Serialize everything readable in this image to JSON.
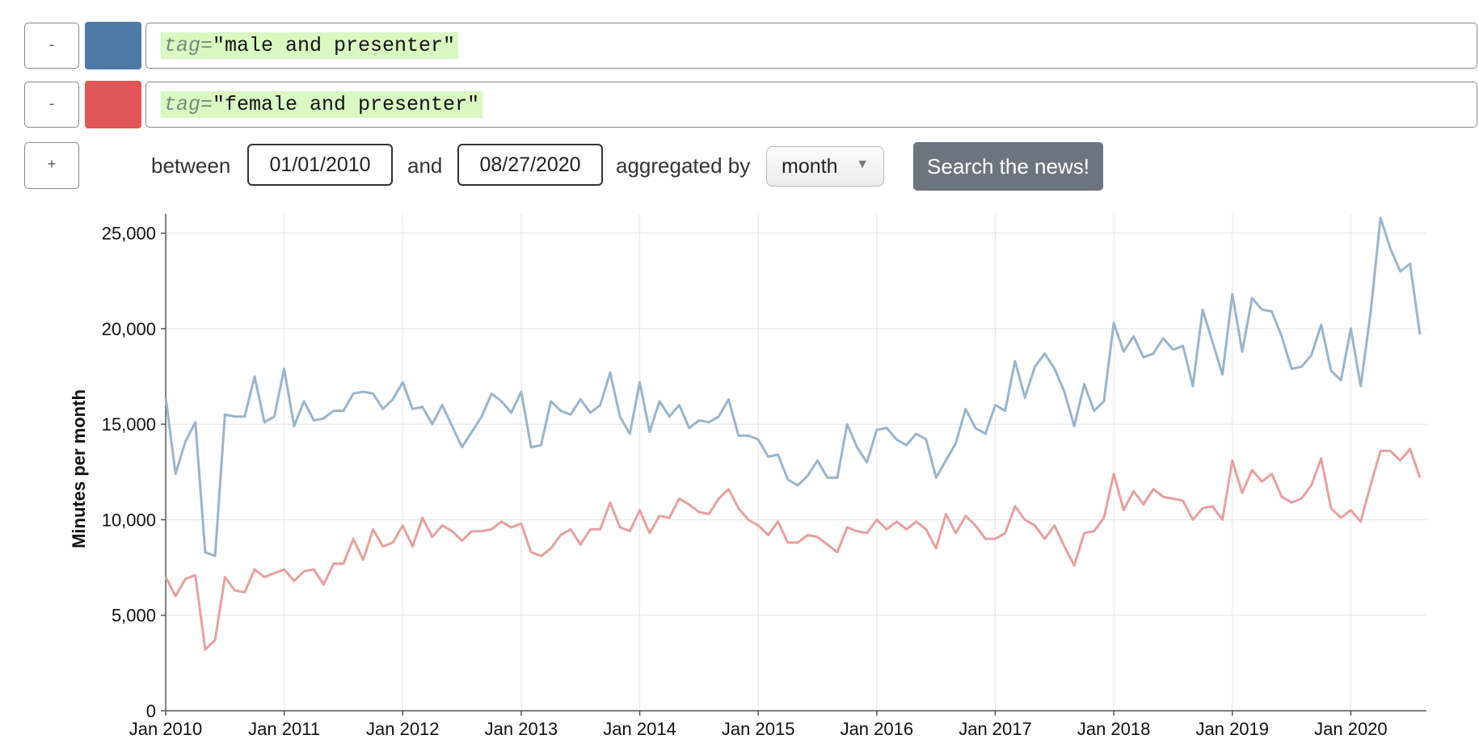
{
  "queries": [
    {
      "remove_label": "-",
      "color": "#4e79a7",
      "key": "tag=",
      "value": "\"male and presenter\""
    },
    {
      "remove_label": "-",
      "color": "#e15759",
      "key": "tag=",
      "value": "\"female and presenter\""
    }
  ],
  "controls": {
    "add_label": "+",
    "between_label": "between",
    "start_date": "01/01/2010",
    "and_label": "and",
    "end_date": "08/27/2020",
    "aggregated_label": "aggregated by",
    "aggregation": "month",
    "search_label": "Search the news!"
  },
  "chart_data": {
    "type": "line",
    "ylabel": "Minutes per month",
    "ylim": [
      0,
      26000
    ],
    "y_ticks": [
      "0",
      "5,000",
      "10,000",
      "15,000",
      "20,000",
      "25,000"
    ],
    "x_ticks": [
      "Jan 2010",
      "Jan 2011",
      "Jan 2012",
      "Jan 2013",
      "Jan 2014",
      "Jan 2015",
      "Jan 2016",
      "Jan 2017",
      "Jan 2018",
      "Jan 2019",
      "Jan 2020"
    ],
    "x_start": "2010-01",
    "x_end": "2020-08",
    "grid": true,
    "series": [
      {
        "color": "#9ab5cc",
        "values": [
          16400,
          12400,
          14100,
          15100,
          8300,
          8100,
          15500,
          15400,
          15400,
          17500,
          15100,
          15400,
          17900,
          14900,
          16200,
          15200,
          15300,
          15700,
          15700,
          16600,
          16700,
          16600,
          15800,
          16300,
          17200,
          15800,
          15900,
          15000,
          16000,
          14900,
          13800,
          14600,
          15400,
          16600,
          16200,
          15600,
          16700,
          13800,
          13900,
          16200,
          15700,
          15500,
          16300,
          15600,
          16000,
          17700,
          15400,
          14500,
          17200,
          14600,
          16200,
          15400,
          16000,
          14800,
          15200,
          15100,
          15400,
          16300,
          14400,
          14400,
          14200,
          13300,
          13400,
          12100,
          11800,
          12300,
          13100,
          12200,
          12200,
          15000,
          13800,
          13000,
          14700,
          14800,
          14200,
          13900,
          14500,
          14200,
          12200,
          13100,
          14000,
          15800,
          14800,
          14500,
          16000,
          15700,
          18300,
          16400,
          18000,
          18700,
          17900,
          16700,
          14900,
          17100,
          15700,
          16200,
          20300,
          18800,
          19600,
          18500,
          18700,
          19500,
          18900,
          19100,
          17000,
          21000,
          19300,
          17600,
          21800,
          18800,
          21600,
          21000,
          20900,
          19600,
          17900,
          18000,
          18600,
          20200,
          17800,
          17300,
          20000,
          17000,
          20800,
          25800,
          24200,
          23000,
          23400,
          19700
        ]
      },
      {
        "color": "#e8a0a0",
        "values": [
          7000,
          6000,
          6900,
          7100,
          3200,
          3700,
          7000,
          6300,
          6200,
          7400,
          7000,
          7200,
          7400,
          6800,
          7300,
          7400,
          6600,
          7700,
          7700,
          9000,
          7900,
          9500,
          8600,
          8800,
          9700,
          8600,
          10100,
          9100,
          9700,
          9400,
          8900,
          9400,
          9400,
          9500,
          9900,
          9600,
          9800,
          8300,
          8100,
          8500,
          9200,
          9500,
          8700,
          9500,
          9500,
          10900,
          9600,
          9400,
          10500,
          9300,
          10200,
          10100,
          11100,
          10800,
          10400,
          10300,
          11100,
          11600,
          10600,
          10000,
          9700,
          9200,
          9900,
          8800,
          8800,
          9200,
          9100,
          8700,
          8300,
          9600,
          9400,
          9300,
          10000,
          9500,
          9900,
          9500,
          9900,
          9500,
          8500,
          10300,
          9300,
          10200,
          9700,
          9000,
          9000,
          9300,
          10700,
          10000,
          9700,
          9000,
          9700,
          8600,
          7600,
          9300,
          9400,
          10100,
          12400,
          10500,
          11500,
          10800,
          11600,
          11200,
          11100,
          11000,
          10000,
          10600,
          10700,
          10000,
          13100,
          11400,
          12600,
          12000,
          12400,
          11200,
          10900,
          11100,
          11800,
          13200,
          10600,
          10100,
          10500,
          9900,
          11800,
          13600,
          13600,
          13100,
          13700,
          12200
        ]
      }
    ]
  }
}
